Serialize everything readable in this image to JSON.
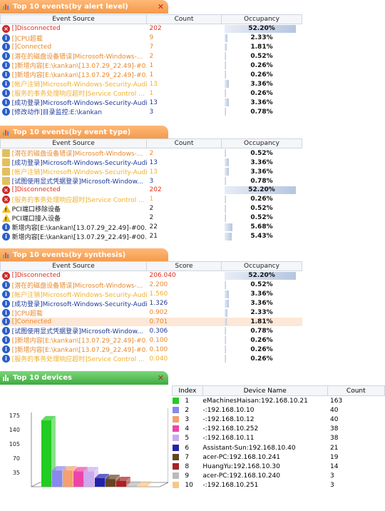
{
  "panels": {
    "alert": {
      "title": "Top 10 events(by alert level)",
      "columns": [
        "Event Source",
        "Count",
        "Occupancy"
      ],
      "rows": [
        {
          "icon": "error",
          "src": "[]Disconnected",
          "num": "202",
          "occ": "52.20%",
          "pct": 52.2,
          "color": "red"
        },
        {
          "icon": "info",
          "src": "[]CPU超载",
          "num": "9",
          "occ": "2.33%",
          "pct": 2.33,
          "color": "orange"
        },
        {
          "icon": "info",
          "src": "[]Connected",
          "num": "7",
          "occ": "1.81%",
          "pct": 1.81,
          "color": "orange"
        },
        {
          "icon": "info",
          "src": "[潜在的磁盘设备错误]Microsoft-Windows-...",
          "num": "2",
          "occ": "0.52%",
          "pct": 0.52,
          "color": "orange"
        },
        {
          "icon": "info",
          "src": "[]新增内容[E:\\kankan\\[13.07.29_22.49]-#0...",
          "num": "1",
          "occ": "0.26%",
          "pct": 0.26,
          "color": "orange"
        },
        {
          "icon": "info",
          "src": "[]新增内容[E:\\kankan\\[13.07.29_22.49]-#0...",
          "num": "1",
          "occ": "0.26%",
          "pct": 0.26,
          "color": "orange"
        },
        {
          "icon": "info",
          "src": "[帐户注销]Microsoft-Windows-Security-Audi...",
          "num": "13",
          "occ": "3.36%",
          "pct": 3.36,
          "color": "gold"
        },
        {
          "icon": "info",
          "src": "[服务的事务处理响应超时]Service Control ...",
          "num": "1",
          "occ": "0.26%",
          "pct": 0.26,
          "color": "gold"
        },
        {
          "icon": "info",
          "src": "[成功登录]Microsoft-Windows-Security-Audi...",
          "num": "13",
          "occ": "3.36%",
          "pct": 3.36,
          "color": "blue"
        },
        {
          "icon": "info",
          "src": "[修改动作]目录监控:E:\\kankan",
          "num": "3",
          "occ": "0.78%",
          "pct": 0.78,
          "color": "blue"
        }
      ]
    },
    "type": {
      "title": "Top 10 events(by event type)",
      "columns": [
        "Event Source",
        "Count",
        "Occupancy"
      ],
      "rows": [
        {
          "icon": "audit",
          "src": "[潜在的磁盘设备错误]Microsoft-Windows-...",
          "num": "2",
          "occ": "0.52%",
          "pct": 0.52,
          "color": "orange"
        },
        {
          "icon": "audit",
          "src": "[成功登录]Microsoft-Windows-Security-Audi...",
          "num": "13",
          "occ": "3.36%",
          "pct": 3.36,
          "color": "blue"
        },
        {
          "icon": "audit",
          "src": "[帐户注销]Microsoft-Windows-Security-Audi...",
          "num": "13",
          "occ": "3.36%",
          "pct": 3.36,
          "color": "gold"
        },
        {
          "icon": "audit",
          "src": "[试图使用显式凭据登录]Microsoft-Window...",
          "num": "3",
          "occ": "0.78%",
          "pct": 0.78,
          "color": "blue"
        },
        {
          "icon": "error",
          "src": "[]Disconnected",
          "num": "202",
          "occ": "52.20%",
          "pct": 52.2,
          "color": "red"
        },
        {
          "icon": "error",
          "src": "[服务的事务处理响应超时]Service Control ...",
          "num": "1",
          "occ": "0.26%",
          "pct": 0.26,
          "color": "gold"
        },
        {
          "icon": "warn",
          "src": "PCI端口移除设备",
          "num": "2",
          "occ": "0.52%",
          "pct": 0.52,
          "color": "dark"
        },
        {
          "icon": "warn",
          "src": "PCI端口接入设备",
          "num": "2",
          "occ": "0.52%",
          "pct": 0.52,
          "color": "dark"
        },
        {
          "icon": "info",
          "src": "新增内容[E:\\kankan\\[13.07.29_22.49]-#00...",
          "num": "22",
          "occ": "5.68%",
          "pct": 5.68,
          "color": "dark"
        },
        {
          "icon": "info",
          "src": "新增内容[E:\\kankan\\[13.07.29_22.49]-#00...",
          "num": "21",
          "occ": "5.43%",
          "pct": 5.43,
          "color": "dark"
        }
      ]
    },
    "synthesis": {
      "title": "Top 10 events(by synthesis)",
      "columns": [
        "Event Source",
        "Score",
        "Occupancy"
      ],
      "rows": [
        {
          "icon": "error",
          "src": "[]Disconnected",
          "num": "206.040",
          "occ": "52.20%",
          "pct": 52.2,
          "color": "red"
        },
        {
          "icon": "info",
          "src": "[潜在的磁盘设备错误]Microsoft-Windows-...",
          "num": "2.200",
          "occ": "0.52%",
          "pct": 0.52,
          "color": "orange"
        },
        {
          "icon": "info",
          "src": "[帐户注销]Microsoft-Windows-Security-Audi...",
          "num": "1.560",
          "occ": "3.36%",
          "pct": 3.36,
          "color": "gold"
        },
        {
          "icon": "info",
          "src": "[成功登录]Microsoft-Windows-Security-Audi...",
          "num": "1.326",
          "occ": "3.36%",
          "pct": 3.36,
          "color": "blue"
        },
        {
          "icon": "info",
          "src": "[]CPU超载",
          "num": "0.902",
          "occ": "2.33%",
          "pct": 2.33,
          "color": "orange"
        },
        {
          "icon": "info",
          "src": "[]Connected",
          "num": "0.701",
          "occ": "1.81%",
          "pct": 1.81,
          "color": "orange",
          "highlight": true
        },
        {
          "icon": "info",
          "src": "[试图使用显式凭据登录]Microsoft-Window...",
          "num": "0.306",
          "occ": "0.78%",
          "pct": 0.78,
          "color": "blue"
        },
        {
          "icon": "info",
          "src": "[]新增内容[E:\\kankan\\[13.07.29_22.49]-#0...",
          "num": "0.100",
          "occ": "0.26%",
          "pct": 0.26,
          "color": "orange"
        },
        {
          "icon": "info",
          "src": "[]新增内容[E:\\kankan\\[13.07.29_22.49]-#0...",
          "num": "0.100",
          "occ": "0.26%",
          "pct": 0.26,
          "color": "orange"
        },
        {
          "icon": "info",
          "src": "[服务的事务处理响应超时]Service Control ...",
          "num": "0.040",
          "occ": "0.26%",
          "pct": 0.26,
          "color": "gold"
        }
      ]
    },
    "devices": {
      "title": "Top 10 devices",
      "columns": [
        "Index",
        "Device Name",
        "Count"
      ],
      "rows": [
        {
          "color": "#22cc22",
          "index": "1",
          "name": "eMachinesHaisan:192.168.10.21",
          "count": "163"
        },
        {
          "color": "#8888ee",
          "index": "2",
          "name": "-:192.168.10.10",
          "count": "40"
        },
        {
          "color": "#f4a070",
          "index": "3",
          "name": "-:192.168.10.12",
          "count": "40"
        },
        {
          "color": "#ee44aa",
          "index": "4",
          "name": "-:192.168.10.252",
          "count": "38"
        },
        {
          "color": "#ccaaee",
          "index": "5",
          "name": "-:192.168.10.11",
          "count": "38"
        },
        {
          "color": "#2222aa",
          "index": "6",
          "name": "Assistant-Sun:192.168.10.40",
          "count": "21"
        },
        {
          "color": "#664422",
          "index": "7",
          "name": "acer-PC:192.168.10.241",
          "count": "19"
        },
        {
          "color": "#aa2222",
          "index": "8",
          "name": "HuangYu:192.168.10.30",
          "count": "14"
        },
        {
          "color": "#bbbbbb",
          "index": "9",
          "name": "acer-PC:192.168.10.240",
          "count": "3"
        },
        {
          "color": "#f8c888",
          "index": "10",
          "name": "-:192.168.10.251",
          "count": "3"
        }
      ]
    }
  },
  "chart_data": {
    "type": "bar",
    "categories": [
      "1",
      "2",
      "3",
      "4",
      "5",
      "6",
      "7",
      "8",
      "9",
      "10"
    ],
    "values": [
      163,
      40,
      40,
      38,
      38,
      21,
      19,
      14,
      3,
      3
    ],
    "colors": [
      "#22cc22",
      "#8888ee",
      "#f4a070",
      "#ee44aa",
      "#ccaaee",
      "#2222aa",
      "#664422",
      "#aa2222",
      "#bbbbbb",
      "#f8c888"
    ],
    "yticks": [
      "175",
      "140",
      "105",
      "70",
      "35"
    ],
    "ylim": [
      0,
      175
    ]
  }
}
